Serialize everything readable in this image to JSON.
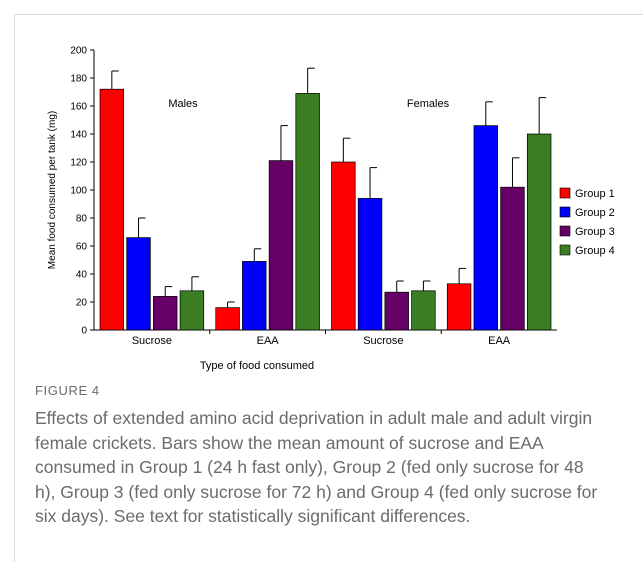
{
  "figure": {
    "label": "FIGURE 4",
    "caption": "Effects of extended amino acid deprivation in adult male and adult virgin female crickets. Bars show the mean amount of sucrose and EAA consumed in Group 1 (24 h fast only), Group 2 (fed only sucrose for 48 h), Group 3 (fed only sucrose for 72 h) and Group 4 (fed only sucrose for six days). See text for statistically significant differences."
  },
  "chart_data": {
    "type": "bar",
    "title": "",
    "xlabel": "Type of food consumed",
    "ylabel": "Mean food consumed per tank (mg)",
    "ylim": [
      0,
      200
    ],
    "yticks": [
      0,
      20,
      40,
      60,
      80,
      100,
      120,
      140,
      160,
      180,
      200
    ],
    "grid": false,
    "legend_position": "right",
    "categories": [
      "Sucrose",
      "EAA",
      "Sucrose",
      "EAA"
    ],
    "annotations": [
      {
        "text": "Males",
        "category_index": 0
      },
      {
        "text": "Females",
        "category_index": 2
      }
    ],
    "series": [
      {
        "name": "Group 1",
        "color": "#ff0000",
        "values": [
          172,
          16,
          120,
          33
        ],
        "errors": [
          13,
          4,
          17,
          11
        ]
      },
      {
        "name": "Group 2",
        "color": "#0000ff",
        "values": [
          66,
          49,
          94,
          146
        ],
        "errors": [
          14,
          9,
          22,
          17
        ]
      },
      {
        "name": "Group 3",
        "color": "#660066",
        "values": [
          24,
          121,
          27,
          102
        ],
        "errors": [
          7,
          25,
          8,
          21
        ]
      },
      {
        "name": "Group 4",
        "color": "#3a7d22",
        "values": [
          28,
          169,
          28,
          140
        ],
        "errors": [
          10,
          18,
          7,
          26
        ]
      }
    ]
  }
}
